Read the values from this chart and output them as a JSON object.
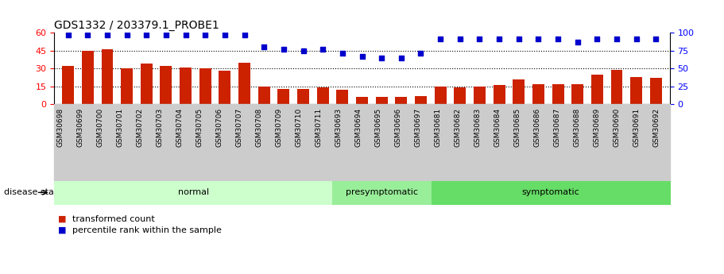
{
  "title": "GDS1332 / 203379.1_PROBE1",
  "samples": [
    "GSM30698",
    "GSM30699",
    "GSM30700",
    "GSM30701",
    "GSM30702",
    "GSM30703",
    "GSM30704",
    "GSM30705",
    "GSM30706",
    "GSM30707",
    "GSM30708",
    "GSM30709",
    "GSM30710",
    "GSM30711",
    "GSM30693",
    "GSM30694",
    "GSM30695",
    "GSM30696",
    "GSM30697",
    "GSM30681",
    "GSM30682",
    "GSM30683",
    "GSM30684",
    "GSM30685",
    "GSM30686",
    "GSM30687",
    "GSM30688",
    "GSM30689",
    "GSM30690",
    "GSM30691",
    "GSM30692"
  ],
  "bar_values": [
    32,
    45,
    46,
    30,
    34,
    32,
    31,
    30,
    28,
    35,
    15,
    13,
    13,
    14,
    12,
    6,
    6,
    6,
    7,
    15,
    14,
    15,
    16,
    21,
    17,
    17,
    17,
    25,
    29,
    23,
    22
  ],
  "percentile_values": [
    97,
    97,
    97,
    97,
    97,
    97,
    97,
    97,
    97,
    97,
    80,
    77,
    75,
    77,
    72,
    67,
    65,
    65,
    72,
    92,
    92,
    92,
    92,
    92,
    92,
    92,
    87,
    92,
    92,
    92,
    92
  ],
  "groups": [
    {
      "label": "normal",
      "start": 0,
      "end": 14,
      "color": "#ccffcc",
      "edge": "#888888"
    },
    {
      "label": "presymptomatic",
      "start": 14,
      "end": 19,
      "color": "#99ee99",
      "edge": "#888888"
    },
    {
      "label": "symptomatic",
      "start": 19,
      "end": 31,
      "color": "#66dd66",
      "edge": "#888888"
    }
  ],
  "bar_color": "#cc2200",
  "percentile_color": "#0000cc",
  "ylim_left": [
    0,
    60
  ],
  "ylim_right": [
    0,
    100
  ],
  "yticks_left": [
    0,
    15,
    30,
    45,
    60
  ],
  "yticks_right": [
    0,
    25,
    50,
    75,
    100
  ],
  "legend_bar": "transformed count",
  "legend_percentile": "percentile rank within the sample",
  "disease_state_label": "disease state",
  "background_color": "#ffffff",
  "tick_bg_color": "#cccccc",
  "title_fontsize": 10,
  "bar_fontsize": 6.5
}
